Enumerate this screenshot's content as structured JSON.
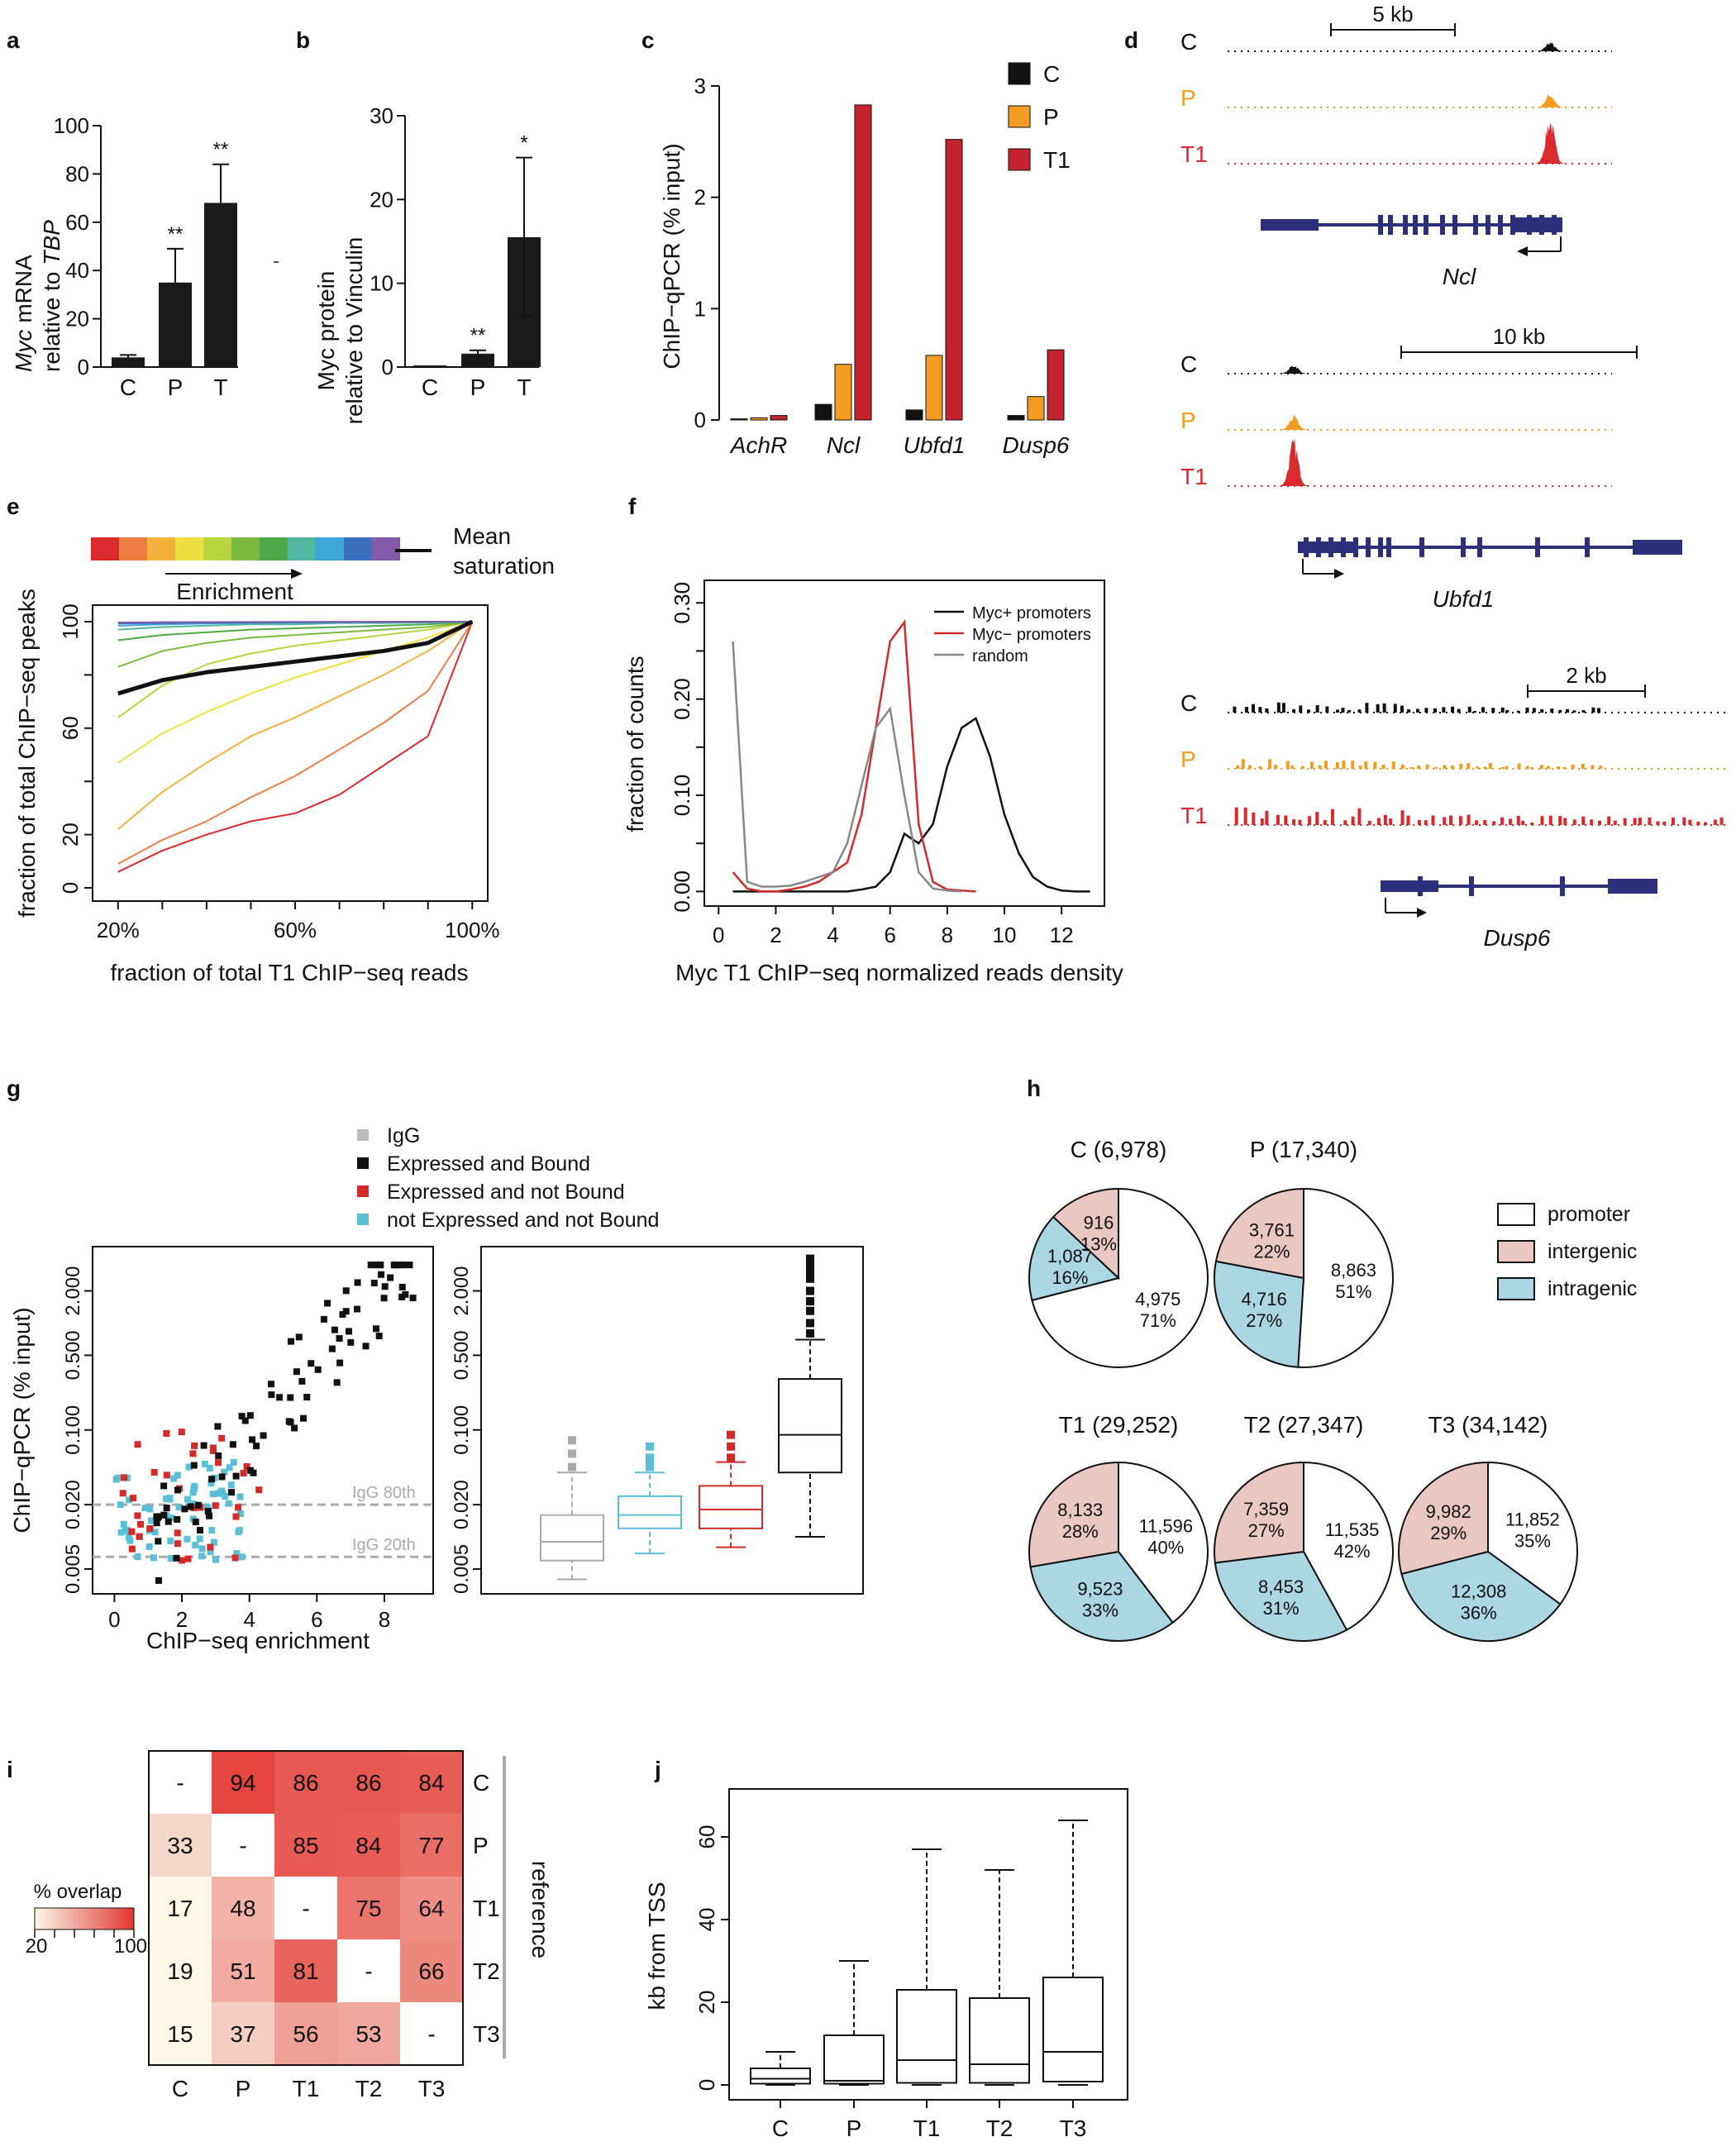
{
  "panels": {
    "a": {
      "letter": "a",
      "ylabel_italic": "Myc",
      "ylabel_1": "mRNA",
      "ylabel_2": "relative to",
      "ylabel_2_italic": "TBP",
      "categories": [
        "C",
        "P",
        "T"
      ],
      "values": [
        4,
        35,
        68
      ],
      "errors": [
        1,
        14,
        16
      ],
      "sig": [
        "",
        "**",
        "**"
      ],
      "yticks": [
        0,
        20,
        40,
        60,
        80,
        100
      ],
      "ylim": [
        0,
        100
      ]
    },
    "b": {
      "letter": "b",
      "ylabel_1": "Myc protein",
      "ylabel_2": "relative to Vinculin",
      "categories": [
        "C",
        "P",
        "T"
      ],
      "values": [
        0.2,
        1.6,
        15.5
      ],
      "errors": [
        0,
        0.4,
        9.5
      ],
      "sig": [
        "",
        "**",
        "*"
      ],
      "yticks": [
        0,
        10,
        20,
        30
      ],
      "ylim": [
        0,
        30
      ]
    },
    "c": {
      "letter": "c",
      "ylabel": "ChIP−qPCR (% input)",
      "categories": [
        "AchR",
        "Ncl",
        "Ubfd1",
        "Dusp6"
      ],
      "series": [
        {
          "name": "C",
          "color": "#111111",
          "values": [
            0.01,
            0.14,
            0.09,
            0.04
          ]
        },
        {
          "name": "P",
          "color": "#f39c23",
          "values": [
            0.02,
            0.5,
            0.58,
            0.21
          ]
        },
        {
          "name": "T1",
          "color": "#c4222f",
          "values": [
            0.04,
            2.83,
            2.52,
            0.63
          ]
        }
      ],
      "yticks": [
        0,
        1,
        2,
        3
      ],
      "ylim": [
        0,
        3
      ]
    },
    "d": {
      "letter": "d",
      "tracks": [
        {
          "scale": "5 kb",
          "gene": "Ncl",
          "labels": [
            "C",
            "P",
            "T1"
          ]
        },
        {
          "scale": "10 kb",
          "gene": "Ubfd1",
          "labels": [
            "C",
            "P",
            "T1"
          ]
        },
        {
          "scale": "2 kb",
          "gene": "Dusp6",
          "labels": [
            "C",
            "P",
            "T1"
          ]
        }
      ]
    },
    "e": {
      "letter": "e",
      "xlabel": "fraction of total T1 ChIP−seq reads",
      "ylabel": "fraction of total ChIP−seq peaks",
      "xtick_labels": [
        "20%",
        "60%",
        "100%"
      ],
      "ytick_labels": [
        "0",
        "20",
        "60",
        "100"
      ],
      "enrichment_label": "Enrichment",
      "mean_label_1": "Mean",
      "mean_label_2": "saturation",
      "colors": [
        "#d92a2f",
        "#ee7d43",
        "#f4b13b",
        "#f0e03f",
        "#b9d43f",
        "#7cba3f",
        "#4ea84a",
        "#52b7a1",
        "#3da7d8",
        "#3b6fbd",
        "#8459a8"
      ],
      "x": [
        20,
        30,
        40,
        50,
        60,
        70,
        80,
        90,
        100
      ],
      "series": [
        [
          6,
          14,
          20,
          25,
          28,
          35,
          46,
          57,
          100
        ],
        [
          9,
          18,
          25,
          34,
          42,
          52,
          62,
          74,
          100
        ],
        [
          22,
          36,
          47,
          57,
          64,
          72,
          80,
          89,
          100
        ],
        [
          47,
          58,
          66,
          73,
          79,
          84,
          89,
          94,
          100
        ],
        [
          64,
          76,
          84,
          88,
          91,
          93,
          95,
          97,
          100
        ],
        [
          83,
          89,
          92,
          94,
          95,
          96,
          97,
          98,
          100
        ],
        [
          93,
          95,
          96,
          97,
          97.5,
          98,
          98.5,
          99,
          100
        ],
        [
          97,
          98,
          98.5,
          99,
          99,
          99.5,
          99.5,
          99.7,
          100
        ],
        [
          98.5,
          99,
          99.3,
          99.5,
          99.6,
          99.7,
          99.8,
          99.9,
          100
        ],
        [
          99.3,
          99.5,
          99.6,
          99.7,
          99.8,
          99.85,
          99.9,
          99.95,
          100
        ],
        [
          99.7,
          99.8,
          99.85,
          99.9,
          99.92,
          99.95,
          99.97,
          99.98,
          100
        ]
      ],
      "mean": [
        73,
        78,
        81,
        83,
        85,
        87,
        89,
        92,
        100
      ],
      "xlim": [
        15,
        100
      ],
      "ylim": [
        0,
        100
      ]
    },
    "f": {
      "letter": "f",
      "xlabel": "Myc T1 ChIP−seq normalized reads density",
      "ylabel": "fraction of counts",
      "xticks": [
        0,
        2,
        4,
        6,
        8,
        10,
        12
      ],
      "ytick_labels": [
        "0.00",
        "0.10",
        "0.20",
        "0.30"
      ],
      "yticks": [
        0,
        0.1,
        0.2,
        0.3
      ],
      "legend": [
        "Myc+ promoters",
        "Myc− promoters",
        "random"
      ],
      "series": [
        {
          "name": "Myc+ promoters",
          "color": "#111111",
          "x": [
            0.5,
            1,
            1.5,
            2,
            2.5,
            3,
            3.5,
            4,
            4.5,
            5,
            5.5,
            6,
            6.5,
            7,
            7.5,
            8,
            8.5,
            9,
            9.5,
            10,
            10.5,
            11,
            11.5,
            12,
            12.5,
            13
          ],
          "y": [
            0,
            0,
            0,
            0,
            0,
            0,
            0,
            0,
            0,
            0.002,
            0.005,
            0.02,
            0.06,
            0.05,
            0.07,
            0.13,
            0.17,
            0.18,
            0.14,
            0.08,
            0.04,
            0.015,
            0.005,
            0.001,
            0,
            0
          ]
        },
        {
          "name": "Myc− promoters",
          "color": "#d32a2a",
          "x": [
            0.5,
            1,
            1.5,
            2,
            2.5,
            3,
            3.5,
            4,
            4.5,
            5,
            5.5,
            6,
            6.5,
            7,
            7.5,
            8,
            8.5,
            9
          ],
          "y": [
            0.02,
            0.003,
            0,
            0,
            0.002,
            0.005,
            0.01,
            0.02,
            0.03,
            0.08,
            0.17,
            0.26,
            0.28,
            0.07,
            0.01,
            0.002,
            0.001,
            0
          ]
        },
        {
          "name": "random",
          "color": "#888888",
          "x": [
            0.5,
            1,
            1.5,
            2,
            2.5,
            3,
            3.5,
            4,
            4.5,
            5,
            5.5,
            6,
            6.5,
            7,
            7.5,
            8,
            8.5
          ],
          "y": [
            0.26,
            0.01,
            0.005,
            0.005,
            0.006,
            0.01,
            0.015,
            0.02,
            0.05,
            0.11,
            0.17,
            0.19,
            0.1,
            0.02,
            0.003,
            0.001,
            0
          ]
        }
      ],
      "xlim": [
        -0.5,
        13.5
      ],
      "ylim": [
        -0.01,
        0.32
      ]
    },
    "g": {
      "letter": "g",
      "legend": [
        {
          "label": "IgG",
          "color": "#bbbbbb"
        },
        {
          "label": "Expressed and Bound",
          "color": "#111111"
        },
        {
          "label": "Expressed and not Bound",
          "color": "#d32a2a"
        },
        {
          "label": "not Expressed and not Bound",
          "color": "#5bbfd6"
        }
      ],
      "xlabel": "ChIP−seq enrichment",
      "ylabel": "ChIP−qPCR (% input)",
      "xticks": [
        0,
        2,
        4,
        6,
        8
      ],
      "ytick_labels": [
        "0.005",
        "0.020",
        "0.100",
        "0.500",
        "2.000"
      ],
      "yticks": [
        0.005,
        0.02,
        0.1,
        0.5,
        2.0
      ],
      "igg80": "IgG 80th",
      "igg20": "IgG 20th",
      "boxes": [
        {
          "name": "IgG",
          "color": "#aaaaaa",
          "min": 0.004,
          "q1": 0.006,
          "median": 0.009,
          "q3": 0.016,
          "max": 0.04,
          "outliers": [
            0.045,
            0.06,
            0.08
          ]
        },
        {
          "name": "not Expressed and not Bound",
          "color": "#5bbfd6",
          "min": 0.007,
          "q1": 0.012,
          "median": 0.016,
          "q3": 0.024,
          "max": 0.04,
          "outliers": [
            0.045,
            0.05,
            0.055,
            0.07
          ]
        },
        {
          "name": "Expressed and not Bound",
          "color": "#d32a2a",
          "min": 0.008,
          "q1": 0.012,
          "median": 0.018,
          "q3": 0.03,
          "max": 0.05,
          "outliers": [
            0.055,
            0.07,
            0.09
          ]
        },
        {
          "name": "Expressed and Bound",
          "color": "#111111",
          "min": 0.01,
          "q1": 0.04,
          "median": 0.09,
          "q3": 0.3,
          "max": 0.7,
          "outliers": [
            0.8,
            1.0,
            1.3,
            1.6,
            2.0,
            2.6,
            3.0,
            3.4,
            4.0
          ]
        }
      ]
    },
    "h": {
      "letter": "h",
      "legend": [
        {
          "label": "promoter",
          "color": "#ffffff"
        },
        {
          "label": "intergenic",
          "color": "#eac7c3"
        },
        {
          "label": "intragenic",
          "color": "#abd7e2"
        }
      ],
      "pies": [
        {
          "title": "C (6,978)",
          "slices": [
            {
              "type": "promoter",
              "count": "4,975",
              "pct": "71%",
              "value": 71
            },
            {
              "type": "intragenic",
              "count": "1,087",
              "pct": "16%",
              "value": 16
            },
            {
              "type": "intergenic",
              "count": "916",
              "pct": "13%",
              "value": 13
            }
          ]
        },
        {
          "title": "P (17,340)",
          "slices": [
            {
              "type": "promoter",
              "count": "8,863",
              "pct": "51%",
              "value": 51
            },
            {
              "type": "intragenic",
              "count": "4,716",
              "pct": "27%",
              "value": 27
            },
            {
              "type": "intergenic",
              "count": "3,761",
              "pct": "22%",
              "value": 22
            }
          ]
        },
        {
          "title": "T1 (29,252)",
          "slices": [
            {
              "type": "promoter",
              "count": "11,596",
              "pct": "40%",
              "value": 40
            },
            {
              "type": "intragenic",
              "count": "9,523",
              "pct": "33%",
              "value": 33
            },
            {
              "type": "intergenic",
              "count": "8,133",
              "pct": "28%",
              "value": 28
            }
          ]
        },
        {
          "title": "T2 (27,347)",
          "slices": [
            {
              "type": "promoter",
              "count": "11,535",
              "pct": "42%",
              "value": 42
            },
            {
              "type": "intragenic",
              "count": "8,453",
              "pct": "31%",
              "value": 31
            },
            {
              "type": "intergenic",
              "count": "7,359",
              "pct": "27%",
              "value": 27
            }
          ]
        },
        {
          "title": "T3 (34,142)",
          "slices": [
            {
              "type": "promoter",
              "count": "11,852",
              "pct": "35%",
              "value": 35
            },
            {
              "type": "intragenic",
              "count": "12,308",
              "pct": "36%",
              "value": 36
            },
            {
              "type": "intergenic",
              "count": "9,982",
              "pct": "29%",
              "value": 29
            }
          ]
        }
      ]
    },
    "i": {
      "letter": "i",
      "legend_title": "% overlap",
      "legend_min": "20",
      "legend_max": "100",
      "reference_label": "reference",
      "cols": [
        "C",
        "P",
        "T1",
        "T2",
        "T3"
      ],
      "rows": [
        "C",
        "P",
        "T1",
        "T2",
        "T3"
      ],
      "cells": [
        [
          "-",
          "94",
          "86",
          "86",
          "84"
        ],
        [
          "33",
          "-",
          "85",
          "84",
          "77"
        ],
        [
          "17",
          "48",
          "-",
          "75",
          "64"
        ],
        [
          "19",
          "51",
          "81",
          "-",
          "66"
        ],
        [
          "15",
          "37",
          "56",
          "53",
          "-"
        ]
      ]
    },
    "j": {
      "letter": "j",
      "ylabel": "kb from TSS",
      "categories": [
        "C",
        "P",
        "T1",
        "T2",
        "T3"
      ],
      "yticks": [
        0,
        20,
        40,
        60
      ],
      "ylim": [
        -2,
        70
      ],
      "boxes": [
        {
          "min": 0,
          "q1": 0.3,
          "median": 1.5,
          "q3": 4,
          "max": 8
        },
        {
          "min": 0,
          "q1": 0.3,
          "median": 1,
          "q3": 12,
          "max": 30
        },
        {
          "min": 0,
          "q1": 0.5,
          "median": 6,
          "q3": 23,
          "max": 57
        },
        {
          "min": 0,
          "q1": 0.5,
          "median": 5,
          "q3": 21,
          "max": 52
        },
        {
          "min": 0,
          "q1": 0.8,
          "median": 8,
          "q3": 26,
          "max": 64
        }
      ]
    }
  },
  "chart_data": [
    {
      "type": "bar",
      "title": "a",
      "categories": [
        "C",
        "P",
        "T"
      ],
      "values": [
        4,
        35,
        68
      ],
      "ylabel": "Myc mRNA relative to TBP",
      "ylim": [
        0,
        100
      ]
    },
    {
      "type": "bar",
      "title": "b",
      "categories": [
        "C",
        "P",
        "T"
      ],
      "values": [
        0.2,
        1.6,
        15.5
      ],
      "ylabel": "Myc protein relative to Vinculin",
      "ylim": [
        0,
        30
      ]
    },
    {
      "type": "bar",
      "title": "c",
      "categories": [
        "AchR",
        "Ncl",
        "Ubfd1",
        "Dusp6"
      ],
      "series": [
        {
          "name": "C",
          "values": [
            0.01,
            0.14,
            0.09,
            0.04
          ]
        },
        {
          "name": "P",
          "values": [
            0.02,
            0.5,
            0.58,
            0.21
          ]
        },
        {
          "name": "T1",
          "values": [
            0.04,
            2.83,
            2.52,
            0.63
          ]
        }
      ],
      "ylabel": "ChIP−qPCR (% input)",
      "ylim": [
        0,
        3
      ]
    },
    {
      "type": "line",
      "title": "e",
      "xlabel": "fraction of total T1 ChIP−seq reads",
      "ylabel": "fraction of total ChIP−seq peaks"
    },
    {
      "type": "line",
      "title": "f",
      "xlabel": "Myc T1 ChIP−seq normalized reads density",
      "ylabel": "fraction of counts"
    },
    {
      "type": "scatter",
      "title": "g",
      "xlabel": "ChIP−seq enrichment",
      "ylabel": "ChIP−qPCR (% input)"
    },
    {
      "type": "pie",
      "title": "h"
    },
    {
      "type": "heatmap",
      "title": "i",
      "rows": [
        "C",
        "P",
        "T1",
        "T2",
        "T3"
      ],
      "cols": [
        "C",
        "P",
        "T1",
        "T2",
        "T3"
      ]
    },
    {
      "type": "bar",
      "title": "j",
      "categories": [
        "C",
        "P",
        "T1",
        "T2",
        "T3"
      ],
      "ylabel": "kb from TSS"
    }
  ]
}
